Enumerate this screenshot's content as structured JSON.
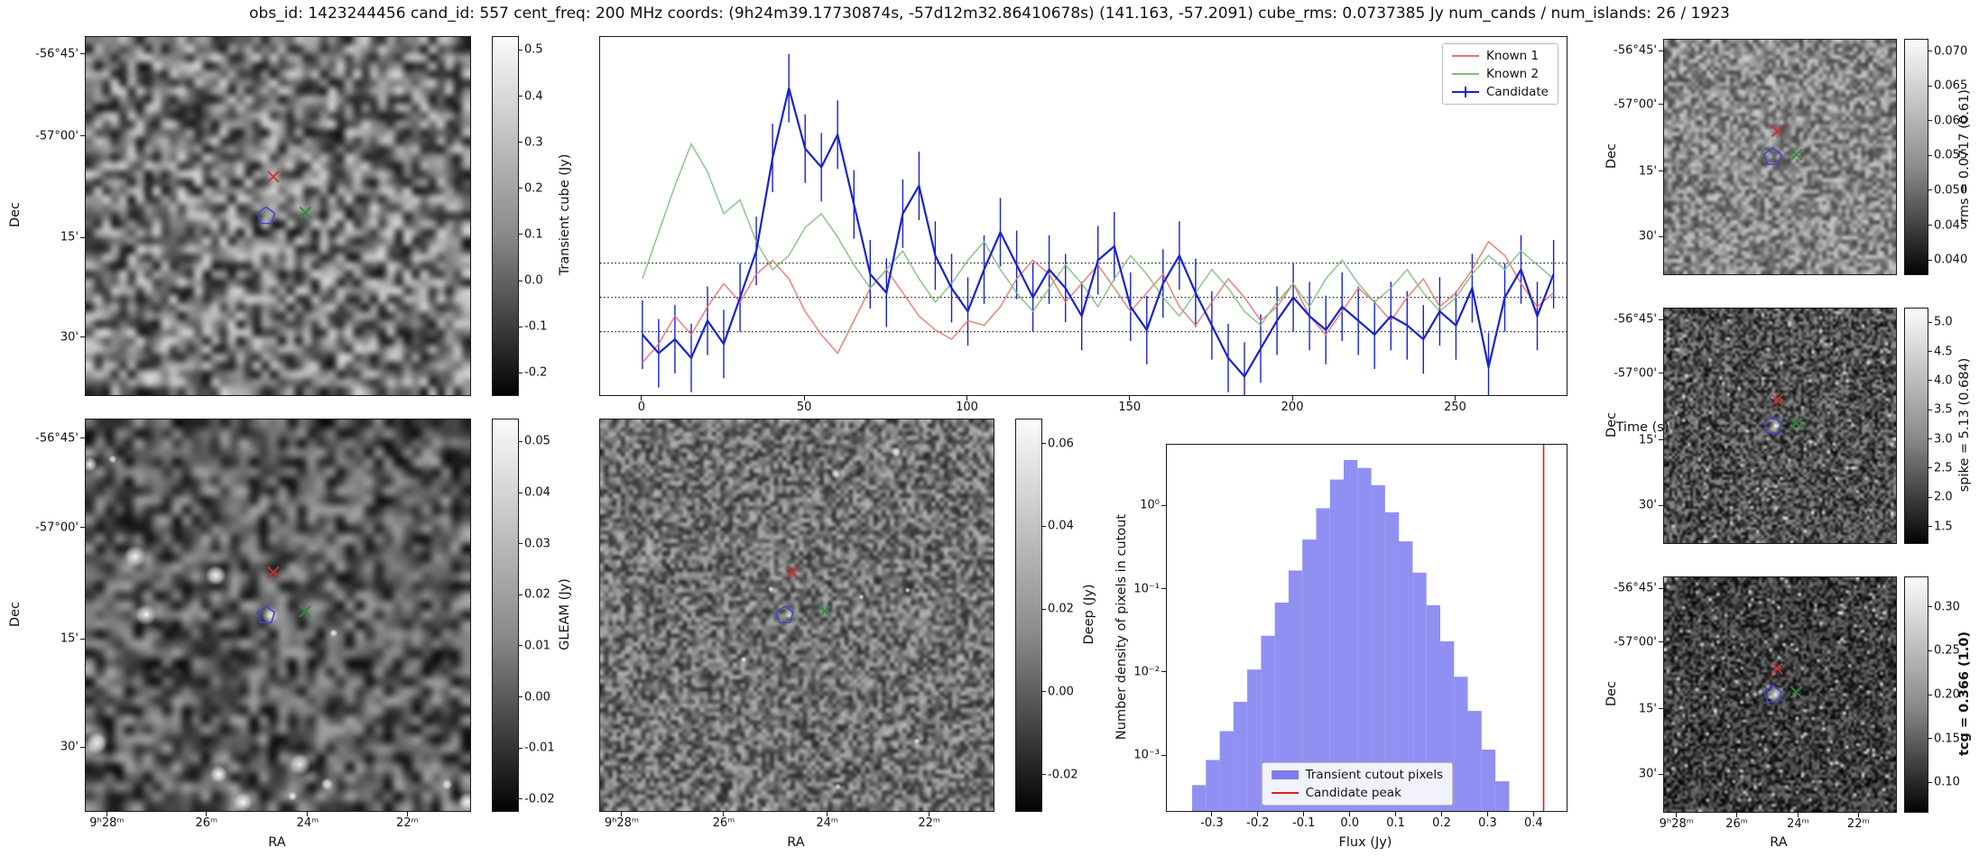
{
  "figure_title": "obs_id: 1423244456 cand_id: 557 cent_freq: 200 MHz coords: (9h24m39.17730874s, -57d12m32.86410678s) (141.163, -57.2091) cube_rms: 0.0737385 Jy num_cands / num_islands: 26 / 1923",
  "markers": {
    "red_cross": {
      "pos": [
        0.488,
        0.39
      ],
      "color": "#d62c2c"
    },
    "green_cross": {
      "pos": [
        0.571,
        0.49
      ],
      "color": "#2e8b3a"
    },
    "blue_polygon": {
      "pos": [
        0.469,
        0.5
      ],
      "color": "#4343cf"
    }
  },
  "chart_data": [
    {
      "id": "transient_cube",
      "type": "heatmap",
      "ylabel": "Dec",
      "ytick_labels": [
        "-56°45'",
        "-57°00'",
        "15'",
        "30'"
      ],
      "colorbar": {
        "label": "Transient cube (Jy)",
        "vmin": -0.25,
        "vmax": 0.53,
        "tick_values": [
          0.5,
          0.4,
          0.3,
          0.2,
          0.1,
          0.0,
          -0.1,
          -0.2
        ],
        "tick_labels": [
          "0.5",
          "0.4",
          "0.3",
          "0.2",
          "0.1",
          "0.0",
          "-0.1",
          "-0.2"
        ]
      }
    },
    {
      "id": "lightcurve",
      "type": "line",
      "xlabel": "Time (s)",
      "xlim": [
        -13,
        284
      ],
      "ylim": [
        -0.21,
        0.56
      ],
      "xticks": [
        0,
        50,
        100,
        150,
        200,
        250
      ],
      "hlines": [
        0.0737385,
        0.0,
        -0.0737385
      ],
      "series": [
        {
          "name": "Known 1",
          "color": "#e8756a",
          "x_start": 0,
          "x_step": 5,
          "y": [
            -0.14,
            -0.1,
            -0.04,
            -0.08,
            -0.02,
            0.03,
            -0.01,
            0.05,
            0.08,
            0.04,
            -0.03,
            -0.08,
            -0.12,
            -0.05,
            0.02,
            0.06,
            0.01,
            -0.04,
            -0.07,
            -0.09,
            -0.05,
            -0.06,
            -0.02,
            0.04,
            0.08,
            0.05,
            -0.01,
            0.03,
            0.07,
            0.02,
            -0.03,
            0.01,
            0.05,
            -0.02,
            -0.06,
            -0.01,
            0.04,
            0.0,
            -0.05,
            -0.02,
            0.03,
            -0.04,
            -0.08,
            -0.03,
            0.02,
            -0.01,
            -0.05,
            0.0,
            0.04,
            -0.02,
            0.01,
            0.06,
            0.12,
            0.09,
            0.03,
            -0.02,
            0.01
          ]
        },
        {
          "name": "Known 2",
          "color": "#7fbf7f",
          "x_start": 0,
          "x_step": 5,
          "y": [
            0.04,
            0.14,
            0.24,
            0.33,
            0.27,
            0.18,
            0.21,
            0.12,
            0.06,
            0.09,
            0.15,
            0.18,
            0.13,
            0.07,
            0.02,
            0.06,
            0.1,
            0.04,
            -0.01,
            0.03,
            0.08,
            0.12,
            0.06,
            0.01,
            -0.03,
            0.02,
            0.07,
            0.03,
            -0.02,
            0.04,
            0.09,
            0.05,
            0.0,
            -0.04,
            0.01,
            0.06,
            0.02,
            -0.03,
            -0.06,
            -0.01,
            0.03,
            -0.02,
            0.04,
            0.08,
            0.03,
            -0.01,
            0.02,
            0.06,
            0.01,
            -0.03,
            0.0,
            0.05,
            0.09,
            0.06,
            0.1,
            0.07,
            0.04
          ]
        },
        {
          "name": "Candidate",
          "color": "#1822cf",
          "x_start": 0,
          "x_step": 5,
          "yerr": 0.0737,
          "y": [
            -0.08,
            -0.12,
            -0.09,
            -0.13,
            -0.05,
            -0.1,
            0.0,
            0.1,
            0.3,
            0.45,
            0.32,
            0.28,
            0.35,
            0.2,
            0.05,
            0.01,
            0.18,
            0.24,
            0.09,
            0.02,
            -0.03,
            0.06,
            0.14,
            0.07,
            0.0,
            0.06,
            0.02,
            -0.04,
            0.08,
            0.11,
            -0.02,
            -0.07,
            0.03,
            0.09,
            0.01,
            -0.06,
            -0.13,
            -0.17,
            -0.11,
            -0.05,
            0.0,
            -0.04,
            -0.07,
            -0.02,
            -0.05,
            -0.08,
            -0.04,
            -0.06,
            -0.09,
            -0.03,
            -0.06,
            0.02,
            -0.15,
            0.0,
            0.06,
            -0.04,
            0.05
          ]
        }
      ]
    },
    {
      "id": "gleam",
      "type": "heatmap",
      "ylabel": "Dec",
      "xlabel": "RA",
      "ytick_labels": [
        "-56°45'",
        "-57°00'",
        "15'",
        "30'"
      ],
      "xtick_labels": [
        "9ʰ28ᵐ",
        "26ᵐ",
        "24ᵐ",
        "22ᵐ"
      ],
      "colorbar": {
        "label": "GLEAM (Jy)",
        "vmin": -0.0225,
        "vmax": 0.0545,
        "tick_values": [
          0.05,
          0.04,
          0.03,
          0.02,
          0.01,
          0.0,
          -0.01,
          -0.02
        ],
        "tick_labels": [
          "0.05",
          "0.04",
          "0.03",
          "0.02",
          "0.01",
          "0.00",
          "-0.01",
          "-0.02"
        ]
      }
    },
    {
      "id": "deep",
      "type": "heatmap",
      "xlabel": "RA",
      "xtick_labels": [
        "9ʰ28ᵐ",
        "26ᵐ",
        "24ᵐ",
        "22ᵐ"
      ],
      "colorbar": {
        "label": "Deep (Jy)",
        "vmin": -0.029,
        "vmax": 0.066,
        "tick_values": [
          0.06,
          0.04,
          0.02,
          0.0,
          -0.02
        ],
        "tick_labels": [
          "0.06",
          "0.04",
          "0.02",
          "0.00",
          "-0.02"
        ]
      }
    },
    {
      "id": "histogram",
      "type": "bar",
      "xlabel": "Flux (Jy)",
      "ylabel": "Number density of pixels in cutout",
      "legend": [
        "Transient cutout pixels",
        "Candidate peak"
      ],
      "bar_color": "#7d7df0",
      "line_color": "#e02020",
      "xlim": [
        -0.4,
        0.47
      ],
      "ylim_log": [
        0.00022,
        5.5
      ],
      "xticks": [
        -0.3,
        -0.2,
        -0.1,
        0.0,
        0.1,
        0.2,
        0.3,
        0.4
      ],
      "xtick_labels": [
        "-0.3",
        "-0.2",
        "-0.1",
        "0.0",
        "0.1",
        "0.2",
        "0.3",
        "0.4"
      ],
      "ytick_values": [
        1,
        0.1,
        0.01,
        0.001
      ],
      "ytick_labels": [
        "10⁰",
        "10⁻¹",
        "10⁻²",
        "10⁻³"
      ],
      "bin_width": 0.03,
      "bin_centers": [
        -0.33,
        -0.3,
        -0.27,
        -0.24,
        -0.21,
        -0.18,
        -0.15,
        -0.12,
        -0.09,
        -0.06,
        -0.03,
        0.0,
        0.03,
        0.06,
        0.09,
        0.12,
        0.15,
        0.18,
        0.21,
        0.24,
        0.27,
        0.3,
        0.33
      ],
      "densities": [
        0.00045,
        0.0009,
        0.002,
        0.0045,
        0.011,
        0.028,
        0.07,
        0.17,
        0.4,
        0.95,
        2.1,
        3.6,
        2.9,
        1.8,
        0.85,
        0.38,
        0.16,
        0.065,
        0.024,
        0.009,
        0.0035,
        0.0012,
        0.0005
      ],
      "candidate_peak": 0.42
    },
    {
      "id": "rms",
      "type": "heatmap",
      "ylabel": "Dec",
      "ytick_labels": [
        "-56°45'",
        "-57°00'",
        "15'",
        "30'"
      ],
      "colorbar": {
        "label": "rms = 0.0717 (0.61)",
        "vmin": 0.0378,
        "vmax": 0.0718,
        "tick_values": [
          0.07,
          0.065,
          0.06,
          0.055,
          0.05,
          0.045,
          0.04
        ],
        "tick_labels": [
          "0.070",
          "0.065",
          "0.060",
          "0.055",
          "0.050",
          "0.045",
          "0.040"
        ]
      }
    },
    {
      "id": "spike",
      "type": "heatmap",
      "ylabel": "Dec",
      "ytick_labels": [
        "-56°45'",
        "-57°00'",
        "15'",
        "30'"
      ],
      "colorbar": {
        "label": "spike = 5.13 (0.684)",
        "vmin": 1.2,
        "vmax": 5.25,
        "tick_values": [
          5.0,
          4.5,
          4.0,
          3.5,
          3.0,
          2.5,
          2.0,
          1.5
        ],
        "tick_labels": [
          "5.0",
          "4.5",
          "4.0",
          "3.5",
          "3.0",
          "2.5",
          "2.0",
          "1.5"
        ]
      }
    },
    {
      "id": "tcg",
      "type": "heatmap",
      "ylabel": "Dec",
      "xlabel": "RA",
      "ytick_labels": [
        "-56°45'",
        "-57°00'",
        "15'",
        "30'"
      ],
      "xtick_labels": [
        "9ʰ28ᵐ",
        "26ᵐ",
        "24ᵐ",
        "22ᵐ"
      ],
      "colorbar": {
        "label": "tcg = 0.366 (1.0)",
        "bold": true,
        "vmin": 0.065,
        "vmax": 0.335,
        "tick_values": [
          0.3,
          0.25,
          0.2,
          0.15,
          0.1
        ],
        "tick_labels": [
          "0.30",
          "0.25",
          "0.20",
          "0.15",
          "0.10"
        ]
      }
    }
  ]
}
